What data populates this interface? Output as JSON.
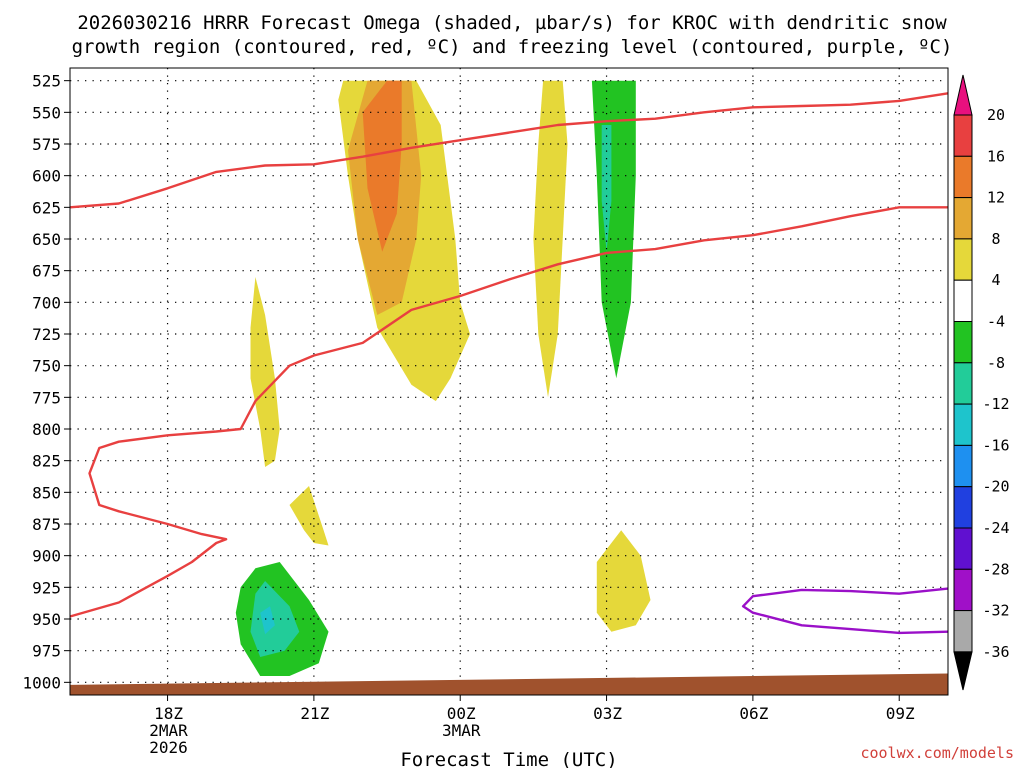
{
  "chart_data": {
    "type": "time-height",
    "title_line1": "2026030216 HRRR Forecast Omega (shaded, µbar/s) for KROC with dendritic snow",
    "title_line2": "growth region (contoured, red, ºC) and freezing level (contoured, purple, ºC)",
    "xlabel": "Forecast Time (UTC)",
    "credit": "coolwx.com/models",
    "x_ticks": [
      {
        "hour": 18,
        "labels": [
          "18Z",
          "2MAR",
          "2026"
        ]
      },
      {
        "hour": 21,
        "labels": [
          "21Z"
        ]
      },
      {
        "hour": 24,
        "labels": [
          "00Z",
          "3MAR"
        ]
      },
      {
        "hour": 27,
        "labels": [
          "03Z"
        ]
      },
      {
        "hour": 30,
        "labels": [
          "06Z"
        ]
      },
      {
        "hour": 33,
        "labels": [
          "09Z"
        ]
      }
    ],
    "x_range_hours": [
      16,
      34
    ],
    "y_levels": [
      "525",
      "550",
      "575",
      "600",
      "625",
      "650",
      "675",
      "700",
      "725",
      "750",
      "775",
      "800",
      "825",
      "850",
      "875",
      "900",
      "925",
      "950",
      "975",
      "1000"
    ],
    "y_range_hpa": [
      1010,
      515
    ],
    "colorbar": {
      "labels": [
        "20",
        "16",
        "12",
        "8",
        "4",
        "-4",
        "-8",
        "-12",
        "-16",
        "-20",
        "-24",
        "-28",
        "-32",
        "-36"
      ],
      "colors": [
        "#e8107e",
        "#e84040",
        "#ea7a2a",
        "#e4a833",
        "#e5d83a",
        "#ffffff",
        "#22c322",
        "#22cc99",
        "#1ec4cc",
        "#1e90f0",
        "#2040e0",
        "#6010d0",
        "#a010c8",
        "#a9a9a9",
        "#000000"
      ]
    },
    "shaded_regions": [
      {
        "value": 4,
        "color": "#e5d83a",
        "points": [
          [
            21.6,
            525
          ],
          [
            23.1,
            525
          ],
          [
            23.6,
            560
          ],
          [
            23.9,
            650
          ],
          [
            24.0,
            700
          ],
          [
            24.2,
            725
          ],
          [
            23.8,
            760
          ],
          [
            23.5,
            778
          ],
          [
            23.0,
            765
          ],
          [
            22.3,
            720
          ],
          [
            21.9,
            650
          ],
          [
            21.7,
            600
          ],
          [
            21.5,
            540
          ]
        ]
      },
      {
        "value": 8,
        "color": "#e4a833",
        "points": [
          [
            22.1,
            525
          ],
          [
            23.0,
            525
          ],
          [
            23.2,
            600
          ],
          [
            23.1,
            650
          ],
          [
            22.8,
            700
          ],
          [
            22.3,
            710
          ],
          [
            21.9,
            650
          ],
          [
            21.7,
            580
          ]
        ]
      },
      {
        "value": 12,
        "color": "#ea7a2a",
        "points": [
          [
            22.5,
            525
          ],
          [
            22.8,
            525
          ],
          [
            22.8,
            575
          ],
          [
            22.7,
            630
          ],
          [
            22.4,
            660
          ],
          [
            22.1,
            610
          ],
          [
            22.0,
            550
          ]
        ]
      },
      {
        "value": 4,
        "color": "#e5d83a",
        "points": [
          [
            25.7,
            525
          ],
          [
            26.1,
            525
          ],
          [
            26.2,
            575
          ],
          [
            26.1,
            650
          ],
          [
            26.0,
            725
          ],
          [
            25.8,
            775
          ],
          [
            25.6,
            725
          ],
          [
            25.5,
            650
          ],
          [
            25.6,
            575
          ]
        ]
      },
      {
        "value": 4,
        "color": "#e5d83a",
        "points": [
          [
            19.8,
            680
          ],
          [
            20.0,
            710
          ],
          [
            20.2,
            760
          ],
          [
            20.3,
            800
          ],
          [
            20.2,
            825
          ],
          [
            20.0,
            830
          ],
          [
            19.9,
            800
          ],
          [
            19.7,
            760
          ],
          [
            19.7,
            720
          ]
        ]
      },
      {
        "value": 4,
        "color": "#e5d83a",
        "points": [
          [
            20.5,
            860
          ],
          [
            20.9,
            845
          ],
          [
            21.2,
            880
          ],
          [
            21.3,
            892
          ],
          [
            21.0,
            890
          ],
          [
            20.8,
            880
          ]
        ]
      },
      {
        "value": 4,
        "color": "#e5d83a",
        "points": [
          [
            26.8,
            905
          ],
          [
            27.3,
            880
          ],
          [
            27.7,
            900
          ],
          [
            27.9,
            935
          ],
          [
            27.6,
            955
          ],
          [
            27.1,
            960
          ],
          [
            26.8,
            945
          ]
        ]
      },
      {
        "value": -4,
        "color": "#22c322",
        "points": [
          [
            26.7,
            525
          ],
          [
            27.6,
            525
          ],
          [
            27.6,
            600
          ],
          [
            27.5,
            700
          ],
          [
            27.2,
            760
          ],
          [
            26.9,
            700
          ],
          [
            26.8,
            600
          ]
        ]
      },
      {
        "value": -8,
        "color": "#22cc99",
        "points": [
          [
            26.9,
            560
          ],
          [
            27.1,
            560
          ],
          [
            27.1,
            620
          ],
          [
            27.0,
            660
          ],
          [
            26.9,
            620
          ]
        ]
      },
      {
        "value": -4,
        "color": "#22c322",
        "points": [
          [
            19.5,
            925
          ],
          [
            19.8,
            910
          ],
          [
            20.3,
            905
          ],
          [
            20.9,
            935
          ],
          [
            21.3,
            960
          ],
          [
            21.1,
            985
          ],
          [
            20.5,
            995
          ],
          [
            19.9,
            995
          ],
          [
            19.5,
            970
          ],
          [
            19.4,
            945
          ]
        ]
      },
      {
        "value": -8,
        "color": "#22cc99",
        "points": [
          [
            19.8,
            930
          ],
          [
            20.0,
            920
          ],
          [
            20.5,
            940
          ],
          [
            20.7,
            960
          ],
          [
            20.4,
            975
          ],
          [
            19.9,
            980
          ],
          [
            19.7,
            960
          ]
        ]
      },
      {
        "value": -12,
        "color": "#1ec4cc",
        "points": [
          [
            19.9,
            945
          ],
          [
            20.1,
            940
          ],
          [
            20.2,
            955
          ],
          [
            20.0,
            962
          ]
        ]
      }
    ],
    "dgz_contours": [
      {
        "color": "#e84040",
        "points": [
          [
            16,
            625
          ],
          [
            17,
            622
          ],
          [
            18,
            610
          ],
          [
            19,
            597
          ],
          [
            20,
            592
          ],
          [
            21,
            591
          ],
          [
            22,
            585
          ],
          [
            23,
            578
          ],
          [
            24,
            572
          ],
          [
            25,
            566
          ],
          [
            26,
            560
          ],
          [
            27,
            557
          ],
          [
            28,
            555
          ],
          [
            29,
            550
          ],
          [
            30,
            546
          ],
          [
            31,
            545
          ],
          [
            32,
            544
          ],
          [
            33,
            541
          ],
          [
            34,
            535
          ]
        ]
      },
      {
        "color": "#e84040",
        "points": [
          [
            16,
            948
          ],
          [
            17,
            937
          ],
          [
            18,
            916
          ],
          [
            18.5,
            905
          ],
          [
            19,
            890
          ],
          [
            19.2,
            887
          ],
          [
            18.7,
            883
          ],
          [
            18.0,
            875
          ],
          [
            17.0,
            865
          ],
          [
            16.6,
            860
          ],
          [
            16.4,
            835
          ],
          [
            16.6,
            815
          ],
          [
            17.0,
            810
          ],
          [
            18.0,
            805
          ],
          [
            19.0,
            802
          ],
          [
            19.5,
            800
          ],
          [
            19.8,
            778
          ],
          [
            20.5,
            750
          ],
          [
            21,
            742
          ],
          [
            22,
            732
          ],
          [
            23,
            706
          ],
          [
            24,
            695
          ],
          [
            25,
            682
          ],
          [
            26,
            670
          ],
          [
            27,
            661
          ],
          [
            28,
            658
          ],
          [
            29,
            651
          ],
          [
            30,
            647
          ],
          [
            31,
            640
          ],
          [
            32,
            632
          ],
          [
            33,
            625
          ],
          [
            34,
            625
          ]
        ]
      }
    ],
    "freezing_contours": [
      {
        "color": "#9a10c8",
        "points": [
          [
            34,
            926
          ],
          [
            33,
            930
          ],
          [
            32,
            928
          ],
          [
            31,
            927
          ],
          [
            30,
            932
          ],
          [
            29.8,
            940
          ],
          [
            30,
            945
          ],
          [
            31,
            955
          ],
          [
            32,
            958
          ],
          [
            33,
            961
          ],
          [
            34,
            960
          ]
        ]
      }
    ],
    "terrain": {
      "color": "#a0522d",
      "base_hpa": 1010,
      "top_left_hpa": 1002,
      "top_right_hpa": 993
    }
  }
}
